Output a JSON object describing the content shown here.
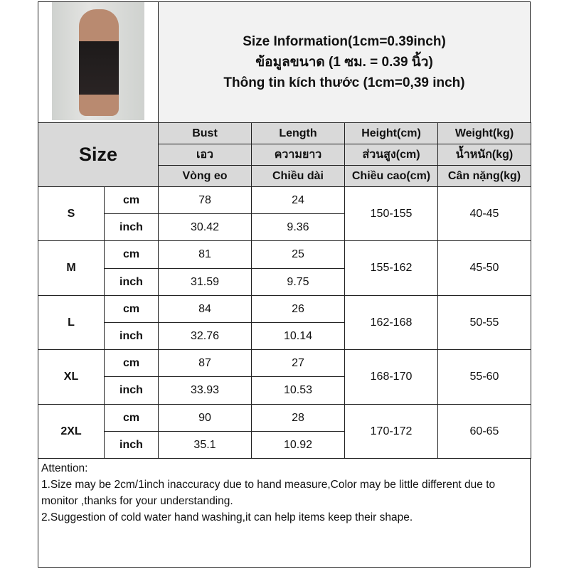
{
  "title": {
    "line1": "Size Information(1cm=0.39inch)",
    "line2": "ข้อมูลขนาด (1 ซม. = 0.39 นิ้ว)",
    "line3": "Thông tin kích thước (1cm=0,39 inch)"
  },
  "header": {
    "size_label": "Size",
    "columns": [
      {
        "en": "Bust",
        "th": "เอว",
        "vi": "Vòng eo"
      },
      {
        "en": "Length",
        "th": "ความยาว",
        "vi": "Chiều dài"
      },
      {
        "en": "Height(cm)",
        "th": "ส่วนสูง(cm)",
        "vi": "Chiều cao(cm)"
      },
      {
        "en": "Weight(kg)",
        "th": "น้ำหนัก(kg)",
        "vi": "Cân nặng(kg)"
      }
    ]
  },
  "units": {
    "cm": "cm",
    "inch": "inch"
  },
  "rows": [
    {
      "size": "S",
      "bust_cm": "78",
      "length_cm": "24",
      "bust_in": "30.42",
      "length_in": "9.36",
      "height": "150-155",
      "weight": "40-45"
    },
    {
      "size": "M",
      "bust_cm": "81",
      "length_cm": "25",
      "bust_in": "31.59",
      "length_in": "9.75",
      "height": "155-162",
      "weight": "45-50"
    },
    {
      "size": "L",
      "bust_cm": "84",
      "length_cm": "26",
      "bust_in": "32.76",
      "length_in": "10.14",
      "height": "162-168",
      "weight": "50-55"
    },
    {
      "size": "XL",
      "bust_cm": "87",
      "length_cm": "27",
      "bust_in": "33.93",
      "length_in": "10.53",
      "height": "168-170",
      "weight": "55-60"
    },
    {
      "size": "2XL",
      "bust_cm": "90",
      "length_cm": "28",
      "bust_in": "35.1",
      "length_in": "10.92",
      "height": "170-172",
      "weight": "60-65"
    }
  ],
  "attention": {
    "heading": "Attention:",
    "note1": "1.Size may be 2cm/1inch inaccuracy due to hand measure,Color may be little different due to monitor ,thanks for your understanding.",
    "note2": "2.Suggestion of cold water hand washing,it can help items keep their shape."
  }
}
